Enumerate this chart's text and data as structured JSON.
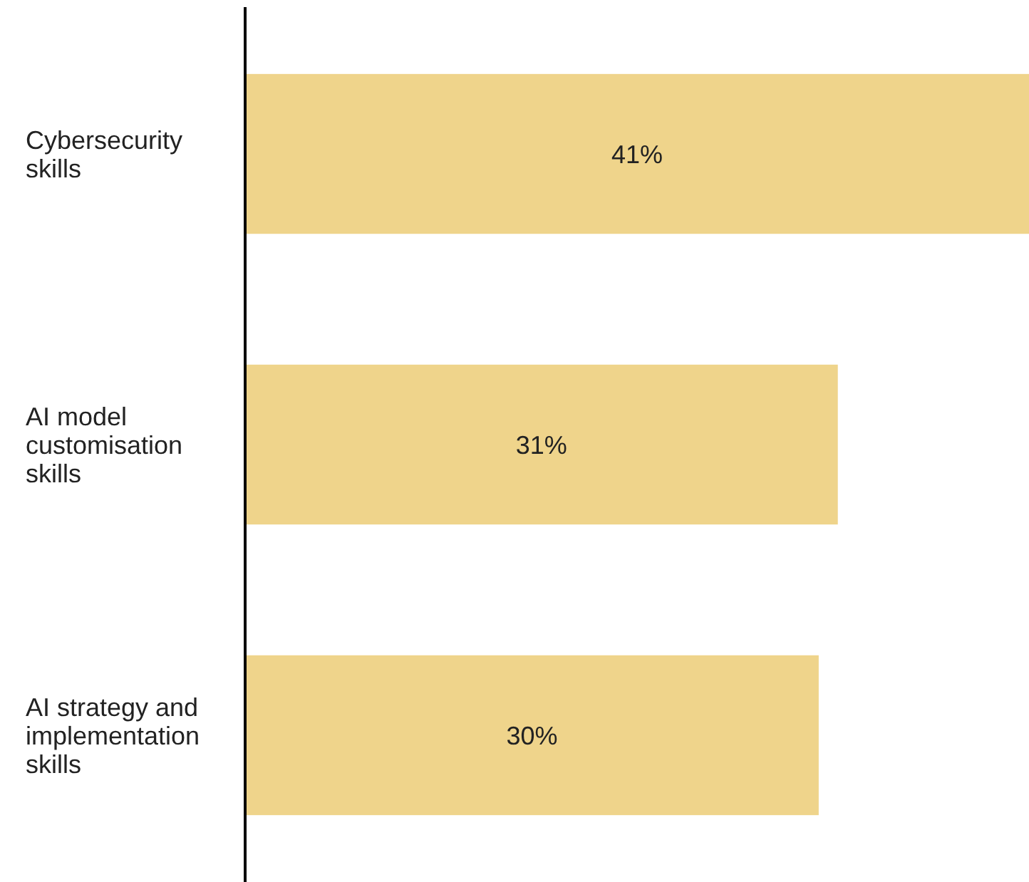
{
  "chart_data": {
    "type": "bar",
    "orientation": "horizontal",
    "categories": [
      "Cybersecurity skills",
      "AI model customisation skills",
      "AI strategy and implementation skills"
    ],
    "values": [
      41,
      31,
      30
    ],
    "value_labels": [
      "41%",
      "31%",
      "30%"
    ],
    "color": "#efd48b"
  }
}
